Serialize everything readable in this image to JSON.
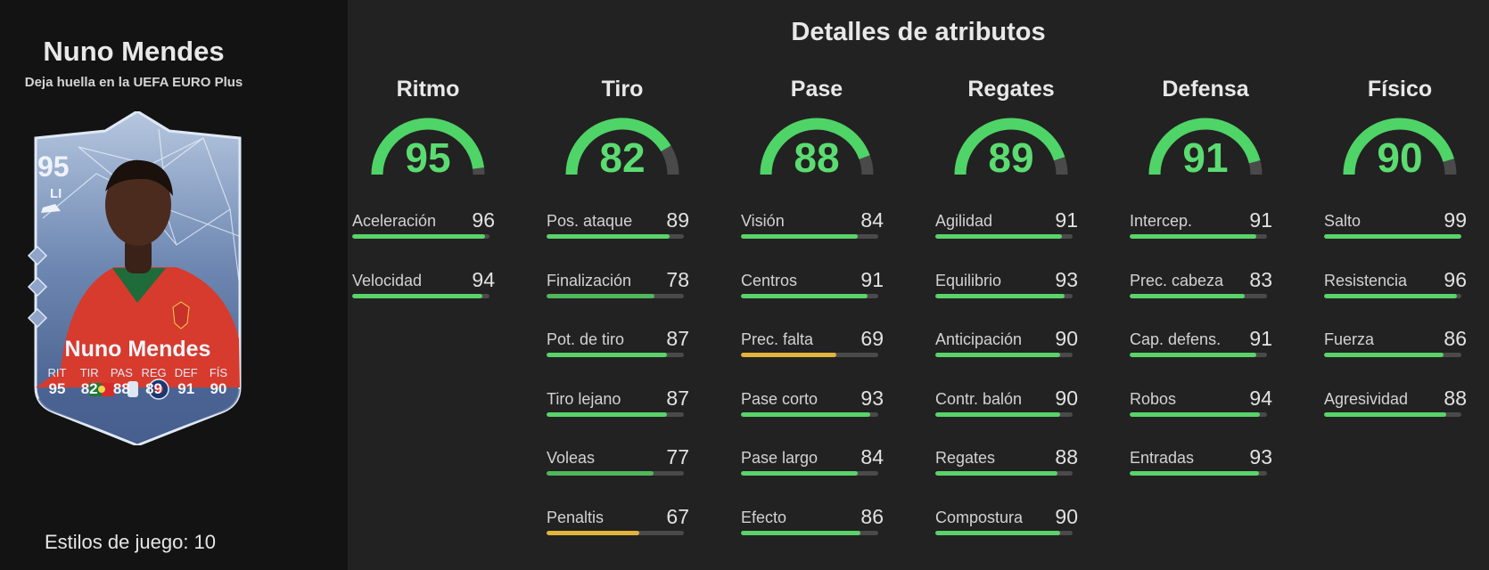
{
  "player": {
    "name": "Nuno Mendes",
    "card_description": "Deja huella en la UEFA EURO Plus",
    "playstyles_label": "Estilos de juego: 10"
  },
  "card": {
    "overall": "95",
    "position": "LI",
    "name": "Nuno Mendes",
    "stat_labels": [
      "RIT",
      "TIR",
      "PAS",
      "REG",
      "DEF",
      "FÍS"
    ],
    "stat_values": [
      "95",
      "82",
      "88",
      "89",
      "91",
      "90"
    ]
  },
  "section_title": "Detalles de atributos",
  "colors": {
    "green": "#59d36a",
    "yellow": "#e2b43c",
    "track": "#4a4a4a"
  },
  "categories": [
    {
      "name": "Ritmo",
      "value": "95",
      "stats": [
        {
          "name": "Aceleración",
          "value": "96"
        },
        {
          "name": "Velocidad",
          "value": "94"
        }
      ]
    },
    {
      "name": "Tiro",
      "value": "82",
      "stats": [
        {
          "name": "Pos. ataque",
          "value": "89"
        },
        {
          "name": "Finalización",
          "value": "78"
        },
        {
          "name": "Pot. de tiro",
          "value": "87"
        },
        {
          "name": "Tiro lejano",
          "value": "87"
        },
        {
          "name": "Voleas",
          "value": "77"
        },
        {
          "name": "Penaltis",
          "value": "67"
        }
      ]
    },
    {
      "name": "Pase",
      "value": "88",
      "stats": [
        {
          "name": "Visión",
          "value": "84"
        },
        {
          "name": "Centros",
          "value": "91"
        },
        {
          "name": "Prec. falta",
          "value": "69"
        },
        {
          "name": "Pase corto",
          "value": "93"
        },
        {
          "name": "Pase largo",
          "value": "84"
        },
        {
          "name": "Efecto",
          "value": "86"
        }
      ]
    },
    {
      "name": "Regates",
      "value": "89",
      "stats": [
        {
          "name": "Agilidad",
          "value": "91"
        },
        {
          "name": "Equilibrio",
          "value": "93"
        },
        {
          "name": "Anticipación",
          "value": "90"
        },
        {
          "name": "Contr. balón",
          "value": "90"
        },
        {
          "name": "Regates",
          "value": "88"
        },
        {
          "name": "Compostura",
          "value": "90"
        }
      ]
    },
    {
      "name": "Defensa",
      "value": "91",
      "stats": [
        {
          "name": "Intercep.",
          "value": "91"
        },
        {
          "name": "Prec. cabeza",
          "value": "83"
        },
        {
          "name": "Cap. defens.",
          "value": "91"
        },
        {
          "name": "Robos",
          "value": "94"
        },
        {
          "name": "Entradas",
          "value": "93"
        }
      ]
    },
    {
      "name": "Físico",
      "value": "90",
      "stats": [
        {
          "name": "Salto",
          "value": "99"
        },
        {
          "name": "Resistencia",
          "value": "96"
        },
        {
          "name": "Fuerza",
          "value": "86"
        },
        {
          "name": "Agresividad",
          "value": "88"
        }
      ]
    }
  ]
}
